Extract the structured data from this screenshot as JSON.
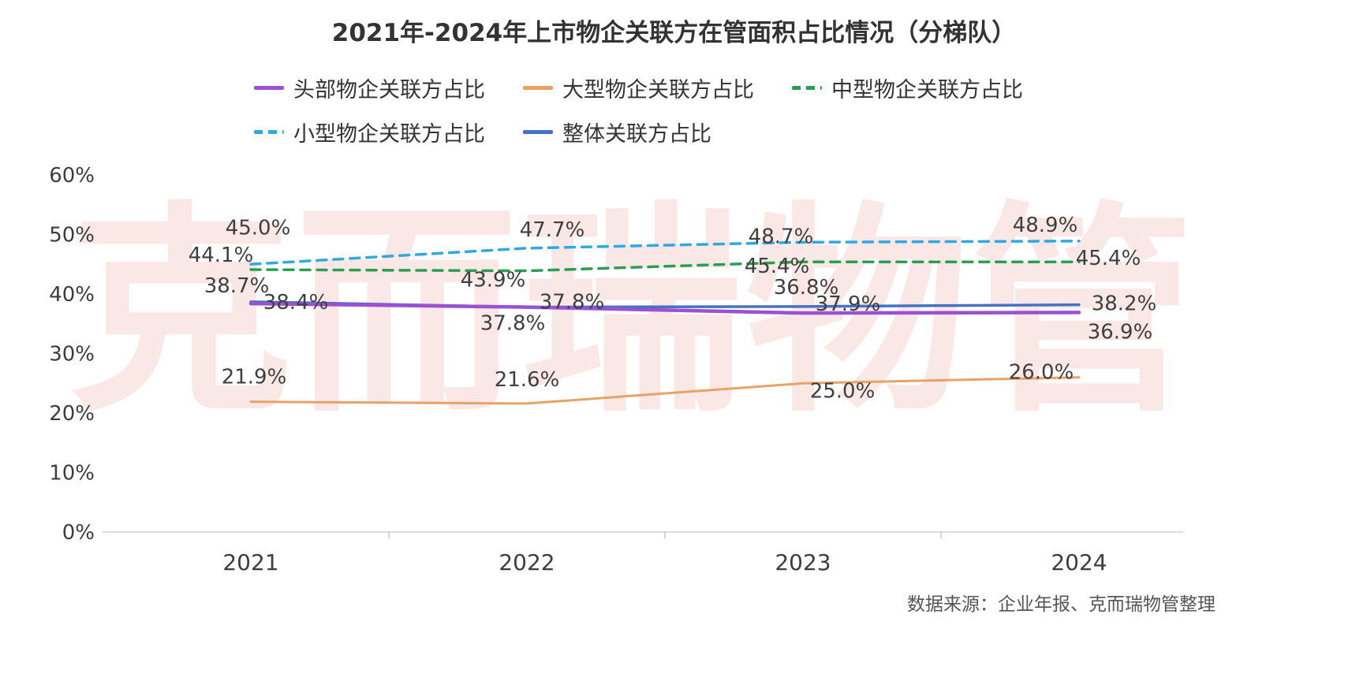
{
  "watermark": {
    "text": "克而瑞物管"
  },
  "footer": {
    "source": "数据来源：企业年报、克而瑞物管整理"
  },
  "chart_data": {
    "type": "line",
    "title": "2021年-2024年上市物企关联方在管面积占比情况（分梯队）",
    "categories": [
      "2021",
      "2022",
      "2023",
      "2024"
    ],
    "y_ticks": [
      "0%",
      "10%",
      "20%",
      "30%",
      "40%",
      "50%",
      "60%"
    ],
    "ylim": [
      0,
      60
    ],
    "grid": false,
    "legend_position": "top",
    "legend_rows": [
      [
        0,
        1,
        2
      ],
      [
        3,
        4
      ]
    ],
    "series": [
      {
        "name": "头部物企关联方占比",
        "color": "#9B51D0",
        "dash": "solid",
        "width": 4.5,
        "values": [
          38.4,
          37.8,
          36.8,
          36.9
        ],
        "labels": [
          "38.4%",
          "37.8%",
          "36.8%",
          "36.9%"
        ],
        "label_offsets": [
          [
            57,
            -2
          ],
          [
            -18,
            20
          ],
          [
            4,
            -33
          ],
          [
            52,
            24
          ]
        ]
      },
      {
        "name": "大型物企关联方占比",
        "color": "#E8A266",
        "dash": "solid",
        "width": 3,
        "values": [
          21.9,
          21.6,
          25.0,
          26.0
        ],
        "labels": [
          "21.9%",
          "21.6%",
          "25.0%",
          "26.0%"
        ],
        "label_offsets": [
          [
            4,
            -32
          ],
          [
            0,
            -31
          ],
          [
            50,
            9
          ],
          [
            -48,
            -7
          ]
        ]
      },
      {
        "name": "中型物企关联方占比",
        "color": "#2B9E51",
        "dash": "dashed",
        "width": 3.5,
        "values": [
          44.1,
          43.9,
          45.4,
          45.4
        ],
        "labels": [
          "44.1%",
          "43.9%",
          "45.4%",
          "45.4%"
        ],
        "label_offsets": [
          [
            -38,
            -19
          ],
          [
            -43,
            11
          ],
          [
            -33,
            5
          ],
          [
            37,
            -5
          ]
        ]
      },
      {
        "name": "小型物企关联方占比",
        "color": "#31A8DF",
        "dash": "dashed",
        "width": 3.5,
        "values": [
          45.0,
          47.7,
          48.7,
          48.9
        ],
        "labels": [
          "45.0%",
          "47.7%",
          "48.7%",
          "48.9%"
        ],
        "label_offsets": [
          [
            9,
            -47
          ],
          [
            32,
            -24
          ],
          [
            -28,
            -8
          ],
          [
            -43,
            -21
          ]
        ]
      },
      {
        "name": "整体关联方占比",
        "color": "#4472C4",
        "dash": "solid",
        "width": 3.5,
        "values": [
          38.7,
          37.8,
          37.9,
          38.2
        ],
        "labels": [
          "38.7%",
          "37.8%",
          "37.9%",
          "38.2%"
        ],
        "label_offsets": [
          [
            -18,
            -21
          ],
          [
            57,
            -7
          ],
          [
            57,
            -4
          ],
          [
            57,
            -2
          ]
        ]
      }
    ]
  }
}
